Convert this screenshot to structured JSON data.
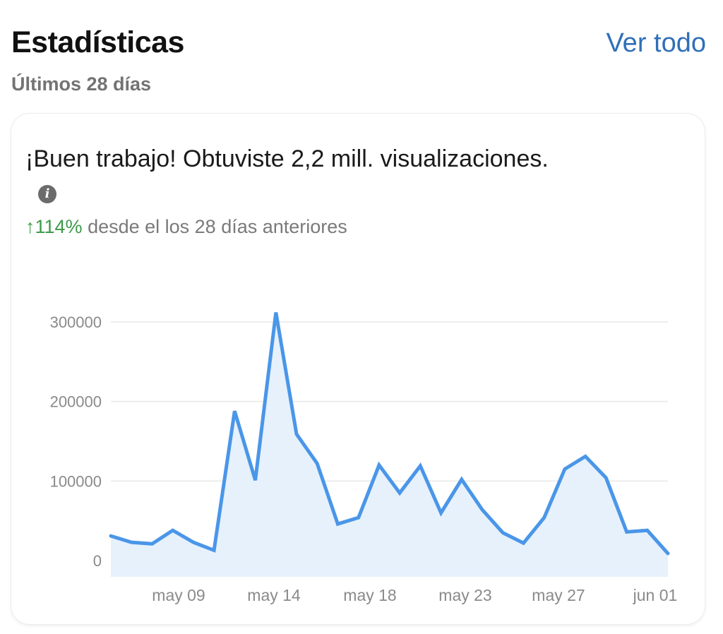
{
  "header": {
    "title": "Estadísticas",
    "subtitle": "Últimos 28 días",
    "see_all": "Ver todo"
  },
  "card": {
    "headline": "¡Buen trabajo! Obtuviste 2,2 mill. visualizaciones.",
    "info_icon": "info-icon",
    "delta_value": "↑114%",
    "delta_text": " desde el los 28 días anteriores"
  },
  "colors": {
    "line": "#4a96e8",
    "fill": "#e6f1fc",
    "positive": "#3d9a4a",
    "link": "#2f6fb8",
    "grid": "#e8e8e8"
  },
  "chart_data": {
    "type": "area",
    "title": "",
    "xlabel": "",
    "ylabel": "",
    "ylim": [
      0,
      300000
    ],
    "yticks": [
      0,
      100000,
      200000,
      300000
    ],
    "ytick_labels": [
      "0",
      "100000",
      "200000",
      "300000"
    ],
    "xtick_labels": [
      "may 09",
      "may 14",
      "may 18",
      "may 23",
      "may 27",
      "jun 01"
    ],
    "grid": true,
    "legend": null,
    "series": [
      {
        "name": "Visualizaciones",
        "values": [
          31000,
          23000,
          21000,
          38000,
          23000,
          13000,
          188000,
          101000,
          312000,
          159000,
          122000,
          46000,
          54000,
          120000,
          85000,
          119000,
          60000,
          102000,
          64000,
          35000,
          22000,
          54000,
          115000,
          131000,
          104000,
          36000,
          38000,
          9000
        ]
      }
    ]
  }
}
